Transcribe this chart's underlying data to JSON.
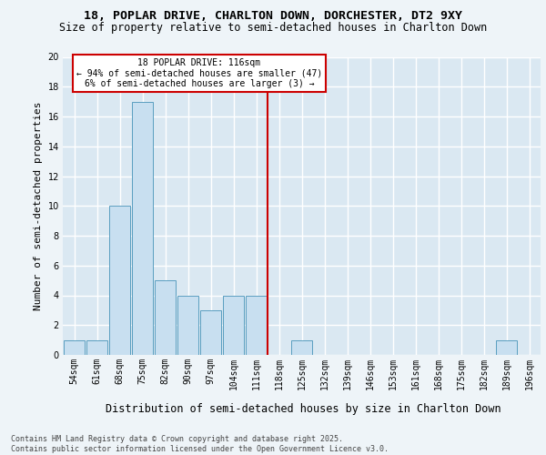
{
  "title_line1": "18, POPLAR DRIVE, CHARLTON DOWN, DORCHESTER, DT2 9XY",
  "title_line2": "Size of property relative to semi-detached houses in Charlton Down",
  "xlabel": "Distribution of semi-detached houses by size in Charlton Down",
  "ylabel": "Number of semi-detached properties",
  "footer": "Contains HM Land Registry data © Crown copyright and database right 2025.\nContains public sector information licensed under the Open Government Licence v3.0.",
  "bin_labels": [
    "54sqm",
    "61sqm",
    "68sqm",
    "75sqm",
    "82sqm",
    "90sqm",
    "97sqm",
    "104sqm",
    "111sqm",
    "118sqm",
    "125sqm",
    "132sqm",
    "139sqm",
    "146sqm",
    "153sqm",
    "161sqm",
    "168sqm",
    "175sqm",
    "182sqm",
    "189sqm",
    "196sqm"
  ],
  "bar_values": [
    1,
    1,
    10,
    17,
    5,
    4,
    3,
    4,
    4,
    0,
    1,
    0,
    0,
    0,
    0,
    0,
    0,
    0,
    0,
    1,
    0
  ],
  "bar_fill_color": "#c8dff0",
  "bar_edge_color": "#5a9ec0",
  "bg_color": "#dae8f2",
  "grid_color": "#ffffff",
  "fig_bg_color": "#eef4f8",
  "vline_color": "#cc0000",
  "vline_label": "18 POPLAR DRIVE: 116sqm",
  "annotation_line2": "← 94% of semi-detached houses are smaller (47)",
  "annotation_line3": "6% of semi-detached houses are larger (3) →",
  "ylim": [
    0,
    20
  ],
  "yticks": [
    0,
    2,
    4,
    6,
    8,
    10,
    12,
    14,
    16,
    18,
    20
  ],
  "title_fontsize": 9.5,
  "subtitle_fontsize": 8.5,
  "ylabel_fontsize": 8,
  "xlabel_fontsize": 8.5,
  "tick_fontsize": 7,
  "annot_fontsize": 7,
  "footer_fontsize": 6
}
